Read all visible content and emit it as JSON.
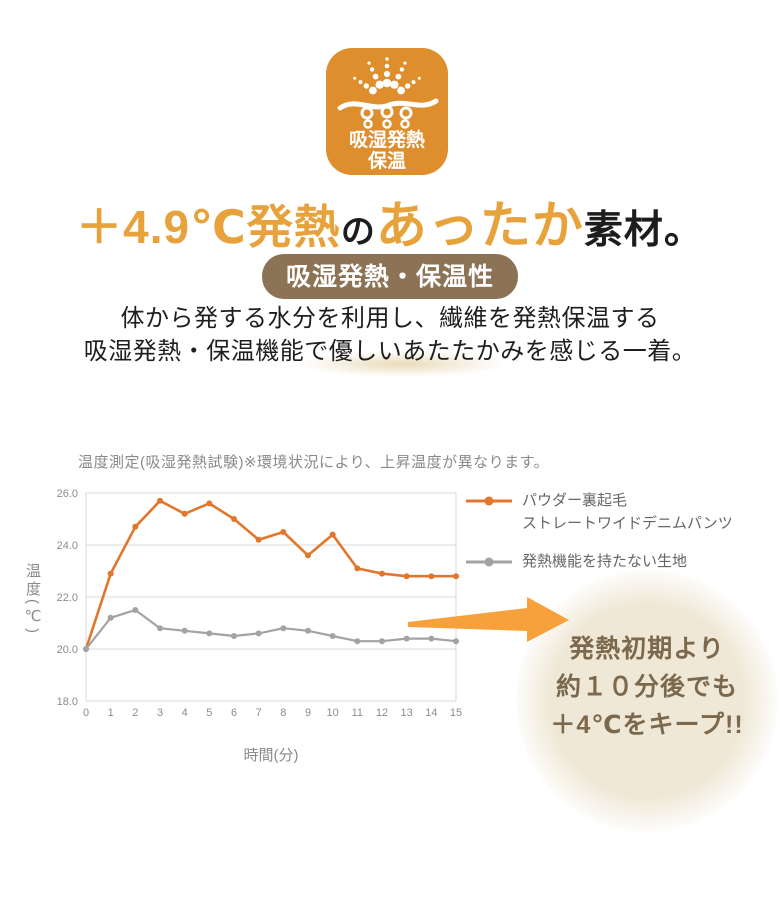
{
  "badge": {
    "icon": "heat-moisture-icon",
    "line1": "吸湿発熱",
    "line2": "保温"
  },
  "headline": {
    "part1": "＋4.9℃発熱",
    "part2": "の",
    "part3": "あったか",
    "part4": "素材。"
  },
  "pill": {
    "label": "吸湿発熱・保温性"
  },
  "description": {
    "line1": "体から発する水分を利用し、繊維を発熱保温する",
    "line2": "吸湿発熱・保温機能で優しいあたたかみを感じる一着。"
  },
  "chart": {
    "title": "温度測定(吸湿発熱試験)※環境状況により、上昇温度が異なります。",
    "xlabel": "時間(分)",
    "ylabel": "温度(℃)"
  },
  "chart_data": {
    "type": "line",
    "title": "温度測定(吸湿発熱試験)※環境状況により、上昇温度が異なります。",
    "xlabel": "時間(分)",
    "ylabel": "温度(℃)",
    "x": [
      0,
      1,
      2,
      3,
      4,
      5,
      6,
      7,
      8,
      9,
      10,
      11,
      12,
      13,
      14,
      15
    ],
    "series": [
      {
        "name": "パウダー裏起毛 ストレートワイドデニムパンツ",
        "color": "#e2772c",
        "values": [
          20.0,
          22.9,
          24.7,
          25.7,
          25.2,
          25.6,
          25.0,
          24.2,
          24.5,
          23.6,
          24.4,
          23.1,
          22.9,
          22.8,
          22.8,
          22.8
        ]
      },
      {
        "name": "発熱機能を持たない生地",
        "color": "#a3a3a3",
        "values": [
          20.0,
          21.2,
          21.5,
          20.8,
          20.7,
          20.6,
          20.5,
          20.6,
          20.8,
          20.7,
          20.5,
          20.3,
          20.3,
          20.4,
          20.4,
          20.3
        ]
      }
    ],
    "ylim": [
      18.0,
      26.0
    ],
    "yticks": [
      18.0,
      20.0,
      22.0,
      24.0,
      26.0
    ],
    "grid": "horizontal",
    "legend_position": "right"
  },
  "legend": {
    "series1_line1": "パウダー裏起毛",
    "series1_line2": "ストレートワイドデニムパンツ",
    "series2": "発熱機能を持たない生地"
  },
  "callout": {
    "line1": "発熱初期より",
    "line2": "約１０分後でも",
    "line3": "＋4℃をキープ!!"
  },
  "colors": {
    "badge_bg": "#de8e2d",
    "headline_orange": "#e7a23b",
    "text_dark": "#1d1d1d",
    "pill_bg": "#8c7355",
    "series1": "#e2772c",
    "series2": "#a3a3a3",
    "grid": "#d9d9d9",
    "axis_text": "#8c8c8c",
    "arrow": "#f6a13c",
    "callout_bg": "#efe8d6",
    "callout_text": "#7c694d",
    "highlight": "#dec794"
  }
}
